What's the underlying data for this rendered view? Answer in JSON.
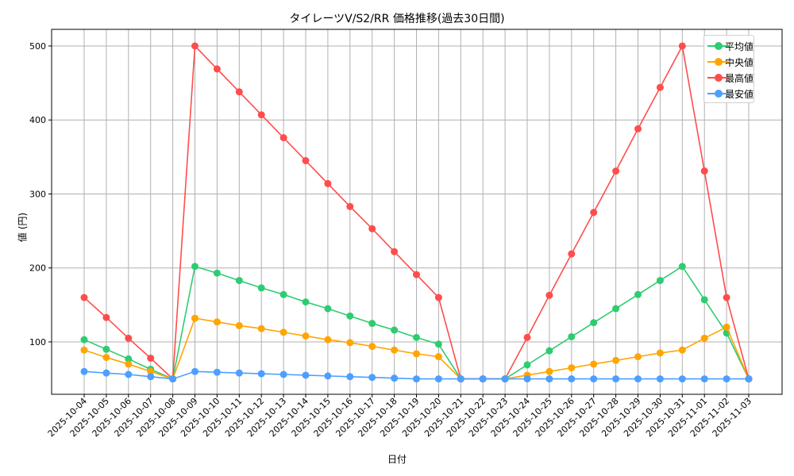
{
  "chart_data": {
    "type": "line",
    "title": "タイレーツV/S2/RR 価格推移(過去30日間)",
    "xlabel": "日付",
    "ylabel": "値 (円)",
    "ylim": [
      20,
      525
    ],
    "yticks": [
      100,
      200,
      300,
      400,
      500
    ],
    "grid": true,
    "legend_position": "upper right",
    "categories": [
      "2025-10-04",
      "2025-10-05",
      "2025-10-06",
      "2025-10-07",
      "2025-10-08",
      "2025-10-09",
      "2025-10-10",
      "2025-10-11",
      "2025-10-12",
      "2025-10-13",
      "2025-10-14",
      "2025-10-15",
      "2025-10-16",
      "2025-10-17",
      "2025-10-18",
      "2025-10-19",
      "2025-10-20",
      "2025-10-21",
      "2025-10-22",
      "2025-10-23",
      "2025-10-24",
      "2025-10-25",
      "2025-10-26",
      "2025-10-27",
      "2025-10-28",
      "2025-10-29",
      "2025-10-30",
      "2025-10-31",
      "2025-11-01",
      "2025-11-02",
      "2025-11-03"
    ],
    "series": [
      {
        "name": "平均値",
        "color": "#2ecc71",
        "values": [
          103,
          90,
          77,
          63,
          50,
          202,
          193,
          183,
          173,
          164,
          154,
          145,
          135,
          125,
          116,
          106,
          97,
          50,
          50,
          50,
          69,
          88,
          107,
          126,
          145,
          164,
          183,
          202,
          157,
          112,
          50
        ]
      },
      {
        "name": "中央値",
        "color": "#ffa500",
        "values": [
          89,
          79,
          70,
          60,
          50,
          132,
          127,
          122,
          118,
          113,
          108,
          103,
          99,
          94,
          89,
          84,
          80,
          50,
          50,
          50,
          55,
          60,
          65,
          70,
          75,
          80,
          85,
          89,
          105,
          120,
          50
        ]
      },
      {
        "name": "最高値",
        "color": "#ff4d4d",
        "values": [
          160,
          133,
          105,
          78,
          50,
          500,
          469,
          438,
          407,
          376,
          345,
          314,
          283,
          253,
          222,
          191,
          160,
          50,
          50,
          50,
          106,
          163,
          219,
          275,
          331,
          388,
          444,
          500,
          331,
          160,
          50
        ]
      },
      {
        "name": "最安値",
        "color": "#4d9fff",
        "values": [
          60,
          58,
          56,
          53,
          50,
          60,
          59,
          58,
          57,
          56,
          55,
          54,
          53,
          52,
          51,
          50,
          50,
          50,
          50,
          50,
          50,
          50,
          50,
          50,
          50,
          50,
          50,
          50,
          50,
          50,
          50
        ]
      }
    ]
  }
}
